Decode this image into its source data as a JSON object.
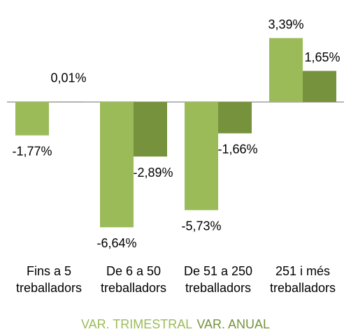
{
  "chart_data": {
    "type": "bar",
    "categories": [
      "Fins a 5 treballadors",
      "De 6 a 50 treballadors",
      "De 51 a 250 treballadors",
      "251 i més treballadors"
    ],
    "series": [
      {
        "name": "VAR. TRIMESTRAL",
        "color": "#9bbb59",
        "values": [
          -1.77,
          -6.64,
          -5.73,
          3.39
        ],
        "value_labels": [
          "-1,77%",
          "-6,64%",
          "-5,73%",
          "3,39%"
        ]
      },
      {
        "name": "VAR. ANUAL",
        "color": "#76923c",
        "values": [
          0.01,
          -2.89,
          -1.66,
          1.65
        ],
        "value_labels": [
          "0,01%",
          "-2,89%",
          "-1,66%",
          "1,65%"
        ]
      }
    ]
  }
}
